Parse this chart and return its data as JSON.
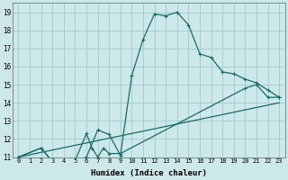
{
  "xlabel": "Humidex (Indice chaleur)",
  "bg_color": "#cce8e8",
  "grid_color": "#aacccc",
  "line_color": "#1a6b6b",
  "xlim": [
    -0.5,
    23.5
  ],
  "ylim": [
    11,
    19.5
  ],
  "xticks": [
    0,
    1,
    2,
    3,
    4,
    5,
    6,
    7,
    8,
    9,
    10,
    11,
    12,
    13,
    14,
    15,
    16,
    17,
    18,
    19,
    20,
    21,
    22,
    23
  ],
  "yticks": [
    11,
    12,
    13,
    14,
    15,
    16,
    17,
    18,
    19
  ],
  "curve1_x": [
    0,
    2,
    3,
    4,
    5,
    6,
    7,
    8,
    9,
    10,
    11,
    12,
    13,
    14,
    15,
    16,
    17,
    18,
    19,
    20,
    21,
    22,
    23
  ],
  "curve1_y": [
    11.0,
    11.5,
    10.75,
    10.75,
    10.8,
    11.0,
    12.5,
    12.25,
    11.1,
    15.5,
    17.5,
    18.9,
    18.8,
    19.0,
    18.3,
    16.7,
    16.5,
    15.7,
    15.6,
    15.3,
    15.1,
    14.7,
    14.3
  ],
  "curve2_x": [
    0,
    2,
    3,
    4,
    5,
    6,
    6.5,
    7,
    7.5,
    8,
    9,
    20,
    21,
    22,
    23
  ],
  "curve2_y": [
    11.0,
    11.5,
    10.75,
    10.75,
    10.8,
    12.3,
    11.5,
    11.0,
    11.5,
    11.2,
    11.2,
    14.8,
    15.0,
    14.3,
    14.3
  ],
  "curve3_x": [
    0,
    23
  ],
  "curve3_y": [
    11.0,
    14.0
  ]
}
